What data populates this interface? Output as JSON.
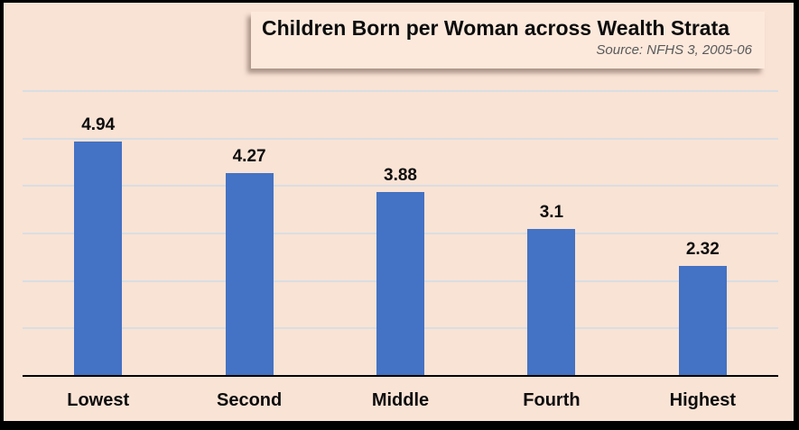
{
  "header": {
    "title": "Children Born per Woman across Wealth Strata",
    "source": "Source: NFHS 3, 2005-06"
  },
  "chart_data": {
    "type": "bar",
    "title": "Children Born per Woman across Wealth Strata",
    "subtitle": "Source: NFHS 3, 2005-06",
    "categories": [
      "Lowest",
      "Second",
      "Middle",
      "Fourth",
      "Highest"
    ],
    "values": [
      4.94,
      4.27,
      3.88,
      3.1,
      2.32
    ],
    "value_labels": [
      "4.94",
      "4.27",
      "3.88",
      "3.1",
      "2.32"
    ],
    "xlabel": "",
    "ylabel": "",
    "ylim": [
      0,
      6
    ],
    "gridline_step": 1,
    "grid": true,
    "legend": false,
    "y_axis_labels_visible": false,
    "colors": {
      "bar": "#4472c4",
      "background": "#f9e3d5",
      "title_box_background": "#fce9dc",
      "gridline": "#d9dee3",
      "axis": "#000000",
      "data_label": "#0d0d0d",
      "source_text": "#595959",
      "frame_border": "#000000"
    }
  }
}
